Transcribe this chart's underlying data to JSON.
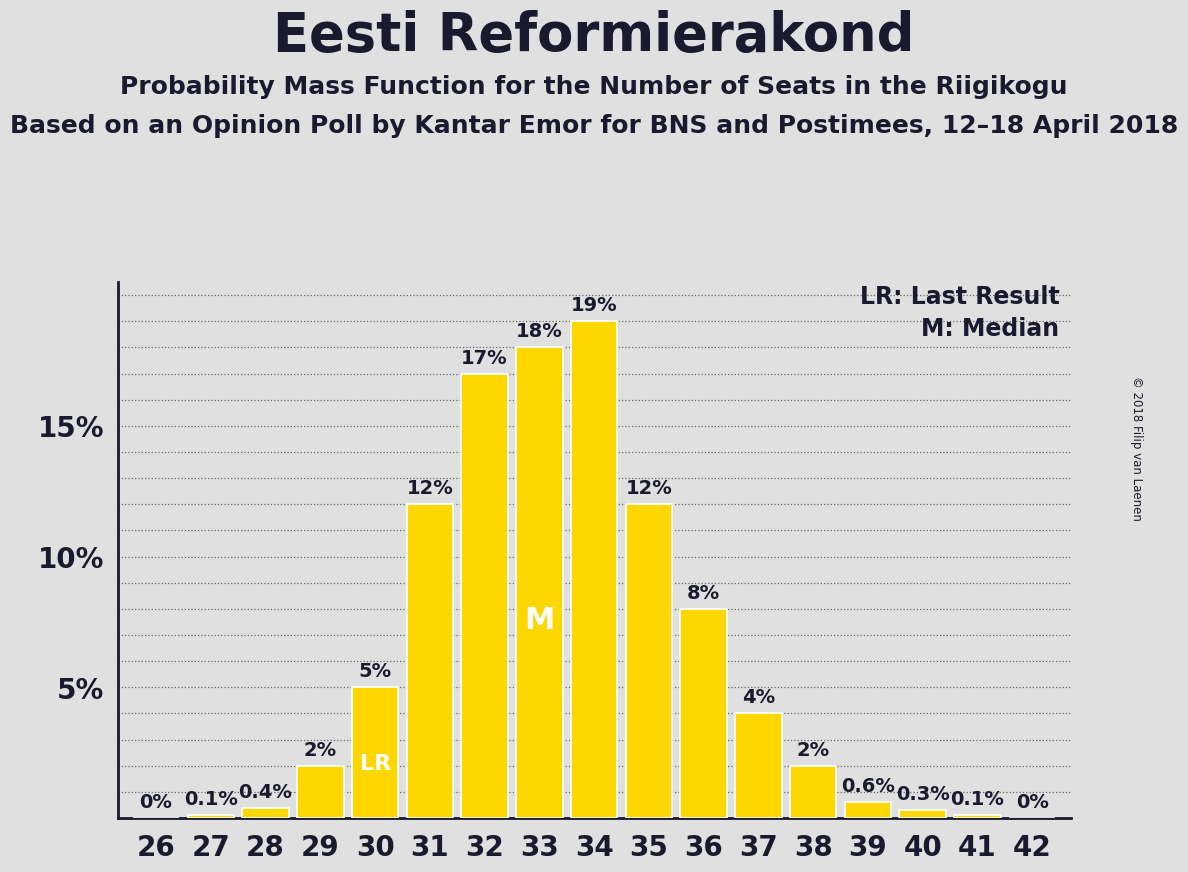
{
  "title": "Eesti Reformierakond",
  "subtitle1": "Probability Mass Function for the Number of Seats in the Riigikogu",
  "subtitle2": "Based on an Opinion Poll by Kantar Emor for BNS and Postimees, 12–18 April 2018",
  "copyright": "© 2018 Filip van Laenen",
  "legend_lr": "LR: Last Result",
  "legend_m": "M: Median",
  "seats": [
    26,
    27,
    28,
    29,
    30,
    31,
    32,
    33,
    34,
    35,
    36,
    37,
    38,
    39,
    40,
    41,
    42
  ],
  "values": [
    0.0,
    0.1,
    0.4,
    2.0,
    5.0,
    12.0,
    17.0,
    18.0,
    19.0,
    12.0,
    8.0,
    4.0,
    2.0,
    0.6,
    0.3,
    0.1,
    0.0
  ],
  "labels": [
    "0%",
    "0.1%",
    "0.4%",
    "2%",
    "5%",
    "12%",
    "17%",
    "18%",
    "19%",
    "12%",
    "8%",
    "4%",
    "2%",
    "0.6%",
    "0.3%",
    "0.1%",
    "0%"
  ],
  "bar_color": "#FFD700",
  "bar_edge_color": "#FFFFFF",
  "background_color": "#E0E0E0",
  "plot_background_color": "#E0E0E0",
  "text_color": "#1a1a2e",
  "ylim": [
    0,
    20.5
  ],
  "yticks": [
    5,
    10,
    15
  ],
  "ytick_labels": [
    "5%",
    "10%",
    "15%"
  ],
  "median_seat": 33,
  "lr_seat": 30,
  "grid_color": "#666666",
  "title_fontsize": 38,
  "subtitle_fontsize": 18,
  "label_fontsize": 14,
  "tick_fontsize": 20,
  "legend_fontsize": 17
}
